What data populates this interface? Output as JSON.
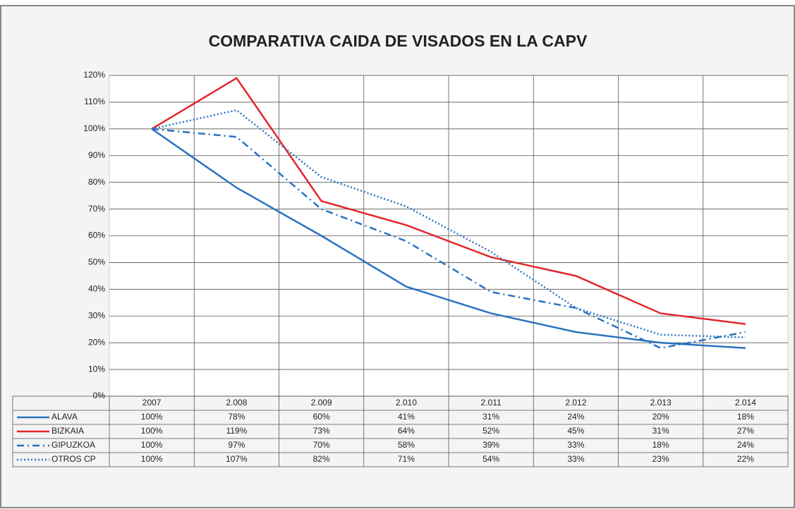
{
  "chart_data": {
    "type": "line",
    "title": "COMPARATIVA CAIDA DE VISADOS EN LA CAPV",
    "categories": [
      "2007",
      "2.008",
      "2.009",
      "2.010",
      "2.011",
      "2.012",
      "2.013",
      "2.014"
    ],
    "series": [
      {
        "name": "ALAVA",
        "color": "#2a72c0",
        "dash": "solid",
        "values": [
          100,
          78,
          60,
          41,
          31,
          24,
          20,
          18
        ],
        "value_labels": [
          "100%",
          "78%",
          "60%",
          "41%",
          "31%",
          "24%",
          "20%",
          "18%"
        ]
      },
      {
        "name": "BIZKAIA",
        "color": "#e3262b",
        "dash": "solid",
        "values": [
          100,
          119,
          73,
          64,
          52,
          45,
          31,
          27
        ],
        "value_labels": [
          "100%",
          "119%",
          "73%",
          "64%",
          "52%",
          "45%",
          "31%",
          "27%"
        ]
      },
      {
        "name": "GIPUZKOA",
        "color": "#2a72c0",
        "dash": "dashdot",
        "values": [
          100,
          97,
          70,
          58,
          39,
          33,
          18,
          24
        ],
        "value_labels": [
          "100%",
          "97%",
          "70%",
          "58%",
          "39%",
          "33%",
          "18%",
          "24%"
        ]
      },
      {
        "name": "OTROS CP",
        "color": "#2a72c0",
        "dash": "dotted",
        "values": [
          100,
          107,
          82,
          71,
          54,
          33,
          23,
          22
        ],
        "value_labels": [
          "100%",
          "107%",
          "82%",
          "71%",
          "54%",
          "33%",
          "23%",
          "22%"
        ]
      }
    ],
    "ylim": [
      0,
      120
    ],
    "yticks": [
      {
        "value": 0,
        "label": "0%"
      },
      {
        "value": 10,
        "label": "10%"
      },
      {
        "value": 20,
        "label": "20%"
      },
      {
        "value": 30,
        "label": "30%"
      },
      {
        "value": 40,
        "label": "40%"
      },
      {
        "value": 50,
        "label": "50%"
      },
      {
        "value": 60,
        "label": "60%"
      },
      {
        "value": 70,
        "label": "70%"
      },
      {
        "value": 80,
        "label": "80%"
      },
      {
        "value": 90,
        "label": "90%"
      },
      {
        "value": 100,
        "label": "100%"
      },
      {
        "value": 110,
        "label": "110%"
      },
      {
        "value": 120,
        "label": "120%"
      }
    ],
    "grid": true
  }
}
